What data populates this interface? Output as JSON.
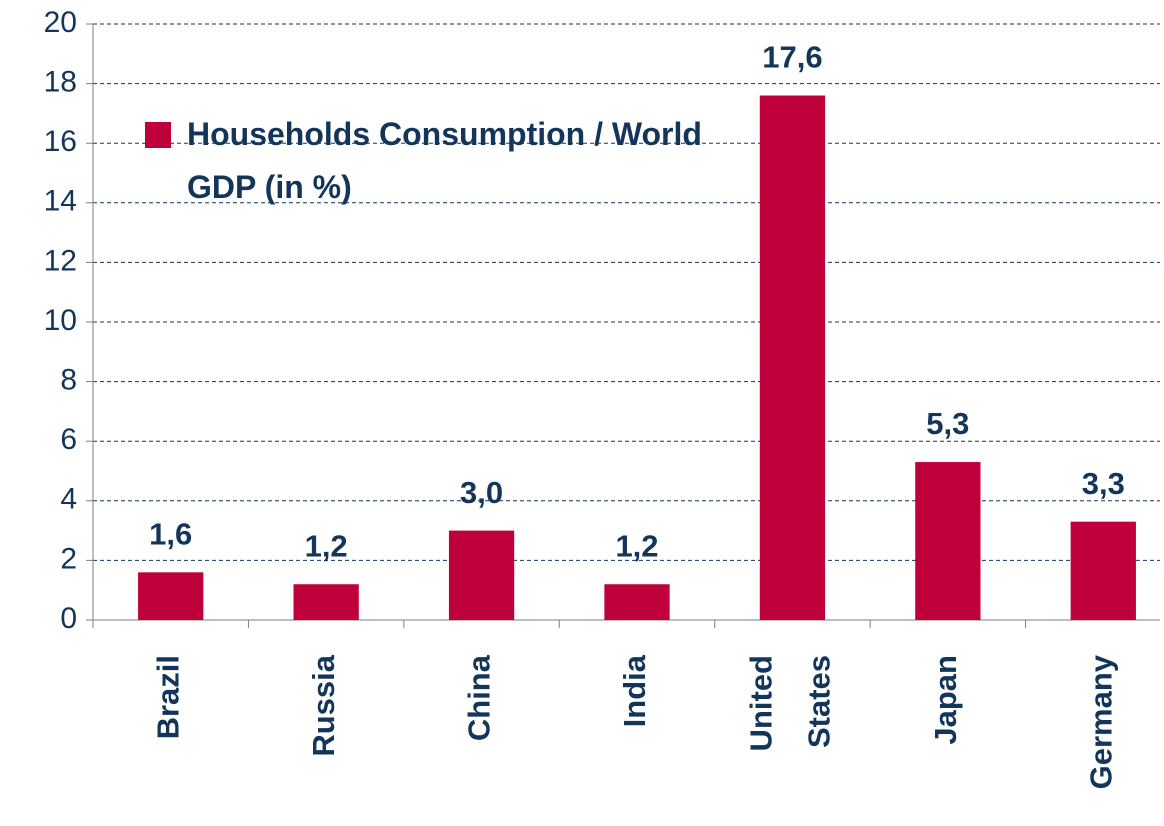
{
  "chart_data": {
    "type": "bar",
    "categories": [
      "Brazil",
      "Russia",
      "China",
      "India",
      "United States",
      "Japan",
      "Germany"
    ],
    "series": [
      {
        "name": "Households Consumption / World GDP (in %)",
        "color": "#c0003a",
        "values": [
          1.6,
          1.2,
          3.0,
          1.2,
          17.6,
          5.3,
          3.3
        ],
        "value_labels": [
          "1,6",
          "1,2",
          "3,0",
          "1,2",
          "17,6",
          "5,3",
          "3,3"
        ]
      }
    ],
    "ylim": [
      0,
      20
    ],
    "yticks": [
      0,
      2,
      4,
      6,
      8,
      10,
      12,
      14,
      16,
      18,
      20
    ],
    "grid": true,
    "legend": "upper left"
  }
}
